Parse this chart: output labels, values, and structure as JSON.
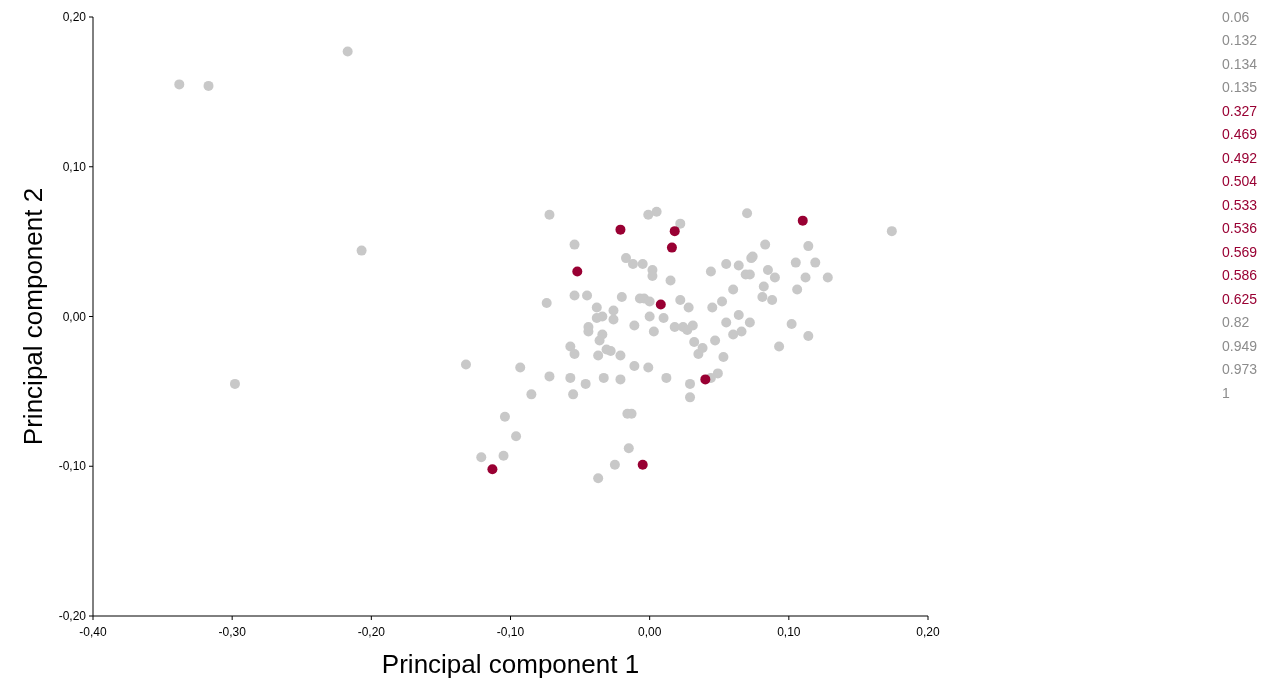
{
  "chart_data": {
    "type": "scatter",
    "xlabel": "Principal component 1",
    "ylabel": "Principal component 2",
    "xlim": [
      -0.4,
      0.2
    ],
    "ylim": [
      -0.2,
      0.2
    ],
    "xticks": [
      {
        "value": -0.4,
        "label": "-0,40"
      },
      {
        "value": -0.3,
        "label": "-0,30"
      },
      {
        "value": -0.2,
        "label": "-0,20"
      },
      {
        "value": -0.1,
        "label": "-0,10"
      },
      {
        "value": 0,
        "label": "0,00"
      },
      {
        "value": 0.1,
        "label": "0,10"
      },
      {
        "value": 0.2,
        "label": "0,20"
      }
    ],
    "yticks": [
      {
        "value": -0.2,
        "label": "-0,20"
      },
      {
        "value": -0.1,
        "label": "-0,10"
      },
      {
        "value": 0,
        "label": "0,00"
      },
      {
        "value": 0.1,
        "label": "0,10"
      },
      {
        "value": 0.2,
        "label": "0,20"
      }
    ],
    "grid": false,
    "marker": "circle",
    "annotations": [
      "0.06",
      "0.132",
      "0.134",
      "0.135",
      "0.327",
      "0.469",
      "0.492",
      "0.504",
      "0.533",
      "0.536",
      "0.569",
      "0.586",
      "0.625",
      "0.82",
      "0.949",
      "0.973",
      "1"
    ],
    "series": [
      {
        "color": "#c8c8c8",
        "x": [
          -0.338,
          -0.317,
          -0.217,
          -0.207,
          -0.298,
          -0.132,
          -0.121,
          -0.105,
          -0.104,
          -0.096,
          -0.093,
          -0.085,
          -0.072,
          -0.074,
          -0.072,
          -0.054,
          -0.054,
          -0.057,
          -0.054,
          -0.057,
          -0.055,
          -0.045,
          -0.044,
          -0.044,
          -0.046,
          -0.038,
          -0.038,
          -0.034,
          -0.036,
          -0.034,
          -0.037,
          -0.033,
          -0.037,
          -0.031,
          -0.028,
          -0.026,
          -0.026,
          -0.025,
          -0.021,
          -0.02,
          -0.021,
          -0.017,
          -0.016,
          -0.013,
          -0.015,
          -0.012,
          -0.011,
          -0.011,
          -0.007,
          -0.005,
          -0.004,
          -0.001,
          0.005,
          -0.001,
          0.002,
          0.002,
          0,
          0,
          0.003,
          0.01,
          0.012,
          0.015,
          0.018,
          0.022,
          0.022,
          0.024,
          0.027,
          0.028,
          0.029,
          0.029,
          0.031,
          0.032,
          0.035,
          0.038,
          0.044,
          0.045,
          0.047,
          0.044,
          0.049,
          0.052,
          0.053,
          0.055,
          0.055,
          0.06,
          0.06,
          0.064,
          0.064,
          0.066,
          0.069,
          0.07,
          0.072,
          0.073,
          0.074,
          0.072,
          0.081,
          0.082,
          0.083,
          0.085,
          0.088,
          0.09,
          0.093,
          0.102,
          0.105,
          0.106,
          0.112,
          0.114,
          0.114,
          0.119,
          0.128,
          0.174
        ],
        "values": [
          0.155,
          0.154,
          0.177,
          0.044,
          -0.045,
          -0.032,
          -0.094,
          -0.093,
          -0.067,
          -0.08,
          -0.034,
          -0.052,
          0.068,
          0.009,
          -0.04,
          0.048,
          0.014,
          -0.02,
          -0.025,
          -0.041,
          -0.052,
          0.014,
          -0.007,
          -0.01,
          -0.045,
          0.006,
          -0.001,
          0,
          -0.016,
          -0.012,
          -0.026,
          -0.041,
          -0.108,
          -0.022,
          -0.023,
          0.004,
          -0.002,
          -0.099,
          -0.026,
          0.013,
          -0.042,
          0.039,
          -0.065,
          -0.065,
          -0.088,
          0.035,
          -0.006,
          -0.033,
          0.012,
          0.035,
          0.012,
          0.068,
          0.07,
          -0.034,
          0.031,
          0.027,
          0.01,
          0,
          -0.01,
          -0.001,
          -0.041,
          0.024,
          -0.007,
          0.011,
          0.062,
          -0.007,
          -0.009,
          0.006,
          -0.045,
          -0.054,
          -0.006,
          -0.017,
          -0.025,
          -0.021,
          0.03,
          0.006,
          -0.016,
          -0.041,
          -0.038,
          0.01,
          -0.027,
          0.035,
          -0.004,
          0.018,
          -0.012,
          0.034,
          0.001,
          -0.01,
          0.028,
          0.069,
          0.028,
          0.039,
          0.04,
          -0.004,
          0.013,
          0.02,
          0.048,
          0.031,
          0.011,
          0.026,
          -0.02,
          -0.005,
          0.036,
          0.018,
          0.026,
          0.047,
          -0.013,
          0.036,
          0.026,
          0.057
        ]
      },
      {
        "color": "#990033",
        "x": [
          -0.113,
          -0.052,
          -0.021,
          -0.005,
          0.008,
          0.016,
          0.018,
          0.04,
          0.11
        ],
        "values": [
          -0.102,
          0.03,
          0.058,
          -0.099,
          0.008,
          0.046,
          0.057,
          -0.042,
          0.064
        ]
      }
    ]
  }
}
